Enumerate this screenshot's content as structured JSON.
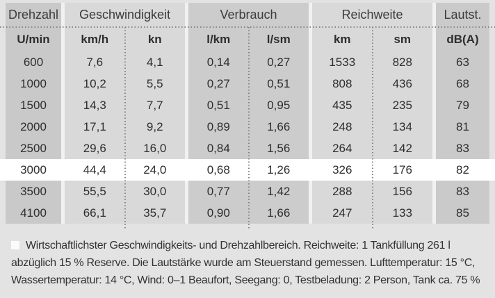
{
  "colors": {
    "page_bg": "#e3e3e3",
    "band_dark": "#c9c9c9",
    "band_light": "#d9d9d9",
    "band_gap": "#f1f1f1",
    "highlight_row": "#ffffff",
    "dotted_line": "#858585",
    "text": "#2e2e2e"
  },
  "table": {
    "groups": [
      {
        "label": "Drehzahl",
        "units": [
          "U/min"
        ]
      },
      {
        "label": "Geschwindigkeit",
        "units": [
          "km/h",
          "kn"
        ]
      },
      {
        "label": "Verbrauch",
        "units": [
          "l/km",
          "l/sm"
        ]
      },
      {
        "label": "Reichweite",
        "units": [
          "km",
          "sm"
        ]
      },
      {
        "label": "Lautst.",
        "units": [
          "dB(A)"
        ]
      }
    ],
    "rows": [
      [
        "600",
        "7,6",
        "4,1",
        "0,14",
        "0,27",
        "1533",
        "828",
        "63"
      ],
      [
        "1000",
        "10,2",
        "5,5",
        "0,27",
        "0,51",
        "808",
        "436",
        "68"
      ],
      [
        "1500",
        "14,3",
        "7,7",
        "0,51",
        "0,95",
        "435",
        "235",
        "79"
      ],
      [
        "2000",
        "17,1",
        "9,2",
        "0,89",
        "1,66",
        "248",
        "134",
        "81"
      ],
      [
        "2500",
        "29,6",
        "16,0",
        "0,84",
        "1,56",
        "264",
        "142",
        "83"
      ],
      [
        "3000",
        "44,4",
        "24,0",
        "0,68",
        "1,26",
        "326",
        "176",
        "82"
      ],
      [
        "3500",
        "55,5",
        "30,0",
        "0,77",
        "1,42",
        "288",
        "156",
        "83"
      ],
      [
        "4100",
        "66,1",
        "35,7",
        "0,90",
        "1,66",
        "247",
        "133",
        "85"
      ]
    ],
    "highlighted_row_value": "3000"
  },
  "footnote": {
    "lines": [
      "Wirtschaftlichster Geschwindigkeits- und Drehzahlbereich. Reichweite: 1 Tankfüllung 261 l",
      "abzüglich 15 % Reserve. Die Lautstärke wurde am Steuerstand gemessen. Lufttemperatur: 15 °C,",
      "Wassertemperatur: 14 °C, Wind: 0–1 Beaufort, Seegang: 0, Testbeladung: 2 Person, Tank ca. 75 %"
    ]
  }
}
